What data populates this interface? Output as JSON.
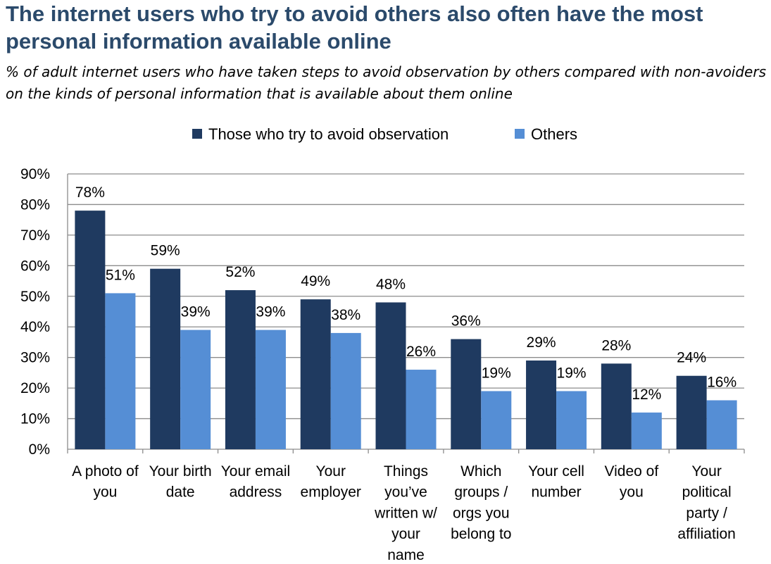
{
  "title": "The internet users who try to avoid others also often have the most personal information available online",
  "subtitle": "% of adult internet users who have taken steps to avoid observation by others compared with non-avoiders on the kinds of personal information that is available about them online",
  "colors": {
    "avoiders": "#1f3a60",
    "others": "#558ed5",
    "grid": "#8c8c8c",
    "axis": "#8c8c8c"
  },
  "chart_data": {
    "type": "bar",
    "categories": [
      [
        "A photo of",
        "you"
      ],
      [
        "Your birth",
        "date"
      ],
      [
        "Your email",
        "address"
      ],
      [
        "Your",
        "employer"
      ],
      [
        "Things",
        "you’ve",
        "written w/",
        "your",
        "name"
      ],
      [
        "Which",
        "groups /",
        "orgs you",
        "belong to"
      ],
      [
        "Your cell",
        "number"
      ],
      [
        "Video of",
        "you"
      ],
      [
        "Your",
        "political",
        "party /",
        "affiliation"
      ]
    ],
    "series": [
      {
        "name": "Those who try to avoid observation",
        "values": [
          78,
          59,
          52,
          49,
          48,
          36,
          29,
          28,
          24
        ],
        "labels": [
          "78%",
          "59%",
          "52%",
          "49%",
          "48%",
          "36%",
          "29%",
          "28%",
          "24%"
        ]
      },
      {
        "name": "Others",
        "values": [
          51,
          39,
          39,
          38,
          26,
          19,
          19,
          12,
          16
        ],
        "labels": [
          "51%",
          "39%",
          "39%",
          "38%",
          "26%",
          "19%",
          "19%",
          "12%",
          "16%"
        ]
      }
    ],
    "ylim": [
      0,
      90
    ],
    "yticks": [
      0,
      10,
      20,
      30,
      40,
      50,
      60,
      70,
      80,
      90
    ],
    "ytick_labels": [
      "0%",
      "10%",
      "20%",
      "30%",
      "40%",
      "50%",
      "60%",
      "70%",
      "80%",
      "90%"
    ],
    "grid": true,
    "legend": "top-center"
  }
}
